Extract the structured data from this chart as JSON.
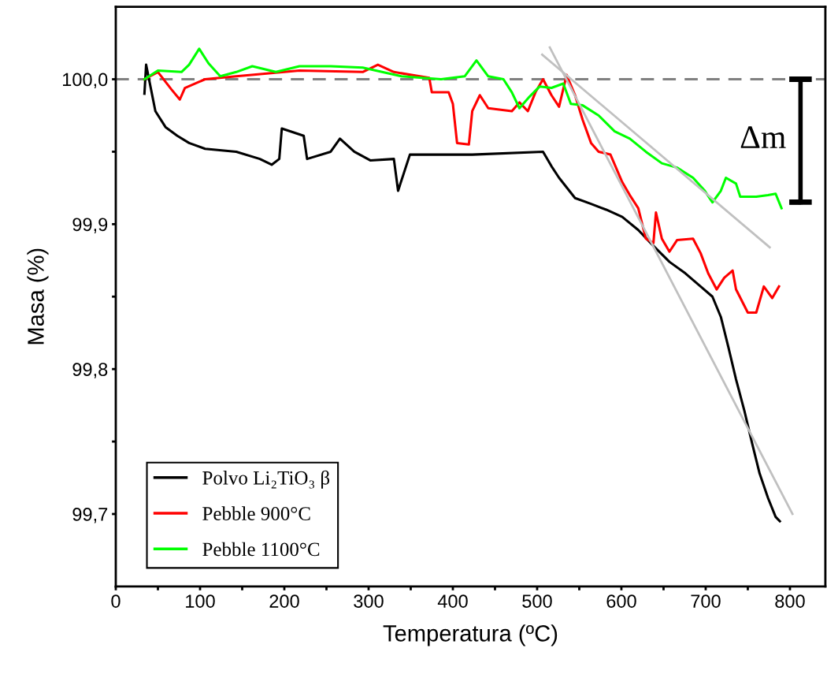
{
  "chart_data": {
    "type": "line",
    "xlabel": "Temperatura (ºC)",
    "ylabel": "Masa (%)",
    "xlim": [
      0,
      842
    ],
    "ylim": [
      99.65,
      100.05
    ],
    "xticks": [
      0,
      {
        "value": 50,
        "label": null
      },
      100,
      {
        "value": 150,
        "label": null
      },
      200,
      {
        "value": 250,
        "label": null
      },
      300,
      {
        "value": 350,
        "label": null
      },
      400,
      {
        "value": 450,
        "label": null
      },
      500,
      {
        "value": 550,
        "label": null
      },
      600,
      {
        "value": 650,
        "label": null
      },
      700,
      {
        "value": 750,
        "label": null
      },
      800
    ],
    "yticks": [
      {
        "value": 99.7,
        "label": "99,7"
      },
      {
        "value": 99.75,
        "label": null
      },
      {
        "value": 99.8,
        "label": "99,8"
      },
      {
        "value": 99.85,
        "label": null
      },
      {
        "value": 99.9,
        "label": "99,9"
      },
      {
        "value": 99.95,
        "label": null
      },
      {
        "value": 100.0,
        "label": "100,0"
      }
    ],
    "legend": "bottom left",
    "ref_lines": [
      {
        "axis": "y",
        "value": 100.0,
        "color": "#808080",
        "line_style": "dashed"
      }
    ],
    "annotations": [
      "Δm"
    ],
    "series": [
      {
        "name": "Polvo Li₂TiO₃ β",
        "color": "#000000",
        "x": [
          34,
          36,
          47,
          59,
          73,
          87,
          106,
          143,
          171,
          185,
          194,
          197,
          223,
          227,
          255,
          266,
          283,
          302,
          330,
          335,
          349,
          423,
          507,
          517,
          526,
          545,
          564,
          582,
          601,
          620,
          638,
          657,
          676,
          694,
          708,
          718,
          727,
          736,
          746,
          755,
          764,
          774,
          783,
          788
        ],
        "values": [
          99.99,
          100.01,
          99.978,
          99.967,
          99.961,
          99.956,
          99.952,
          99.95,
          99.945,
          99.941,
          99.945,
          99.966,
          99.961,
          99.945,
          99.95,
          99.959,
          99.95,
          99.944,
          99.945,
          99.923,
          99.948,
          99.948,
          99.95,
          99.94,
          99.932,
          99.918,
          99.914,
          99.91,
          99.905,
          99.896,
          99.885,
          99.874,
          99.866,
          99.857,
          99.85,
          99.836,
          99.815,
          99.793,
          99.771,
          99.749,
          99.728,
          99.711,
          99.698,
          99.695
        ]
      },
      {
        "name": "Pebble 900°C",
        "color": "#ff0000",
        "x": [
          34,
          50,
          66,
          76,
          82,
          106,
          143,
          218,
          293,
          311,
          330,
          372,
          375,
          395,
          400,
          405,
          419,
          423,
          432,
          442,
          470,
          479,
          489,
          498,
          507,
          517,
          526,
          535,
          545,
          554,
          564,
          573,
          587,
          601,
          610,
          620,
          629,
          638,
          641,
          648,
          657,
          666,
          685,
          694,
          703,
          713,
          722,
          732,
          736,
          750,
          760,
          769,
          779,
          787
        ],
        "values": [
          100.0,
          100.005,
          99.993,
          99.986,
          99.994,
          100.0,
          100.002,
          100.006,
          100.005,
          100.01,
          100.005,
          100.001,
          99.991,
          99.991,
          99.983,
          99.956,
          99.955,
          99.978,
          99.989,
          99.98,
          99.978,
          99.984,
          99.978,
          99.991,
          100.0,
          99.989,
          99.981,
          100.003,
          99.989,
          99.972,
          99.956,
          99.95,
          99.948,
          99.929,
          99.92,
          99.911,
          99.89,
          99.887,
          99.908,
          99.89,
          99.881,
          99.889,
          99.89,
          99.88,
          99.866,
          99.855,
          99.863,
          99.868,
          99.855,
          99.839,
          99.839,
          99.857,
          99.849,
          99.857
        ]
      },
      {
        "name": "Pebble 1100°C",
        "color": "#00ff00",
        "x": [
          34,
          50,
          78,
          87,
          99,
          110,
          124,
          143,
          162,
          190,
          218,
          255,
          293,
          339,
          386,
          414,
          428,
          442,
          460,
          470,
          479,
          491,
          503,
          517,
          531,
          540,
          554,
          573,
          592,
          610,
          629,
          648,
          666,
          685,
          699,
          708,
          718,
          724,
          736,
          741,
          760,
          774,
          783,
          790
        ],
        "values": [
          100.0,
          100.006,
          100.005,
          100.01,
          100.021,
          100.011,
          100.002,
          100.005,
          100.009,
          100.005,
          100.009,
          100.009,
          100.008,
          100.002,
          100.0,
          100.002,
          100.013,
          100.002,
          100.0,
          99.991,
          99.98,
          99.988,
          99.995,
          99.994,
          99.997,
          99.983,
          99.982,
          99.975,
          99.964,
          99.959,
          99.95,
          99.942,
          99.939,
          99.932,
          99.923,
          99.915,
          99.923,
          99.932,
          99.928,
          99.919,
          99.919,
          99.92,
          99.921,
          99.911
        ]
      },
      {
        "color": "#c0c0c0",
        "x": [
          506,
          776
        ],
        "values": [
          100.017,
          99.884
        ]
      },
      {
        "color": "#c0c0c0",
        "x": [
          515,
          803
        ],
        "values": [
          100.022,
          99.7
        ]
      }
    ]
  }
}
